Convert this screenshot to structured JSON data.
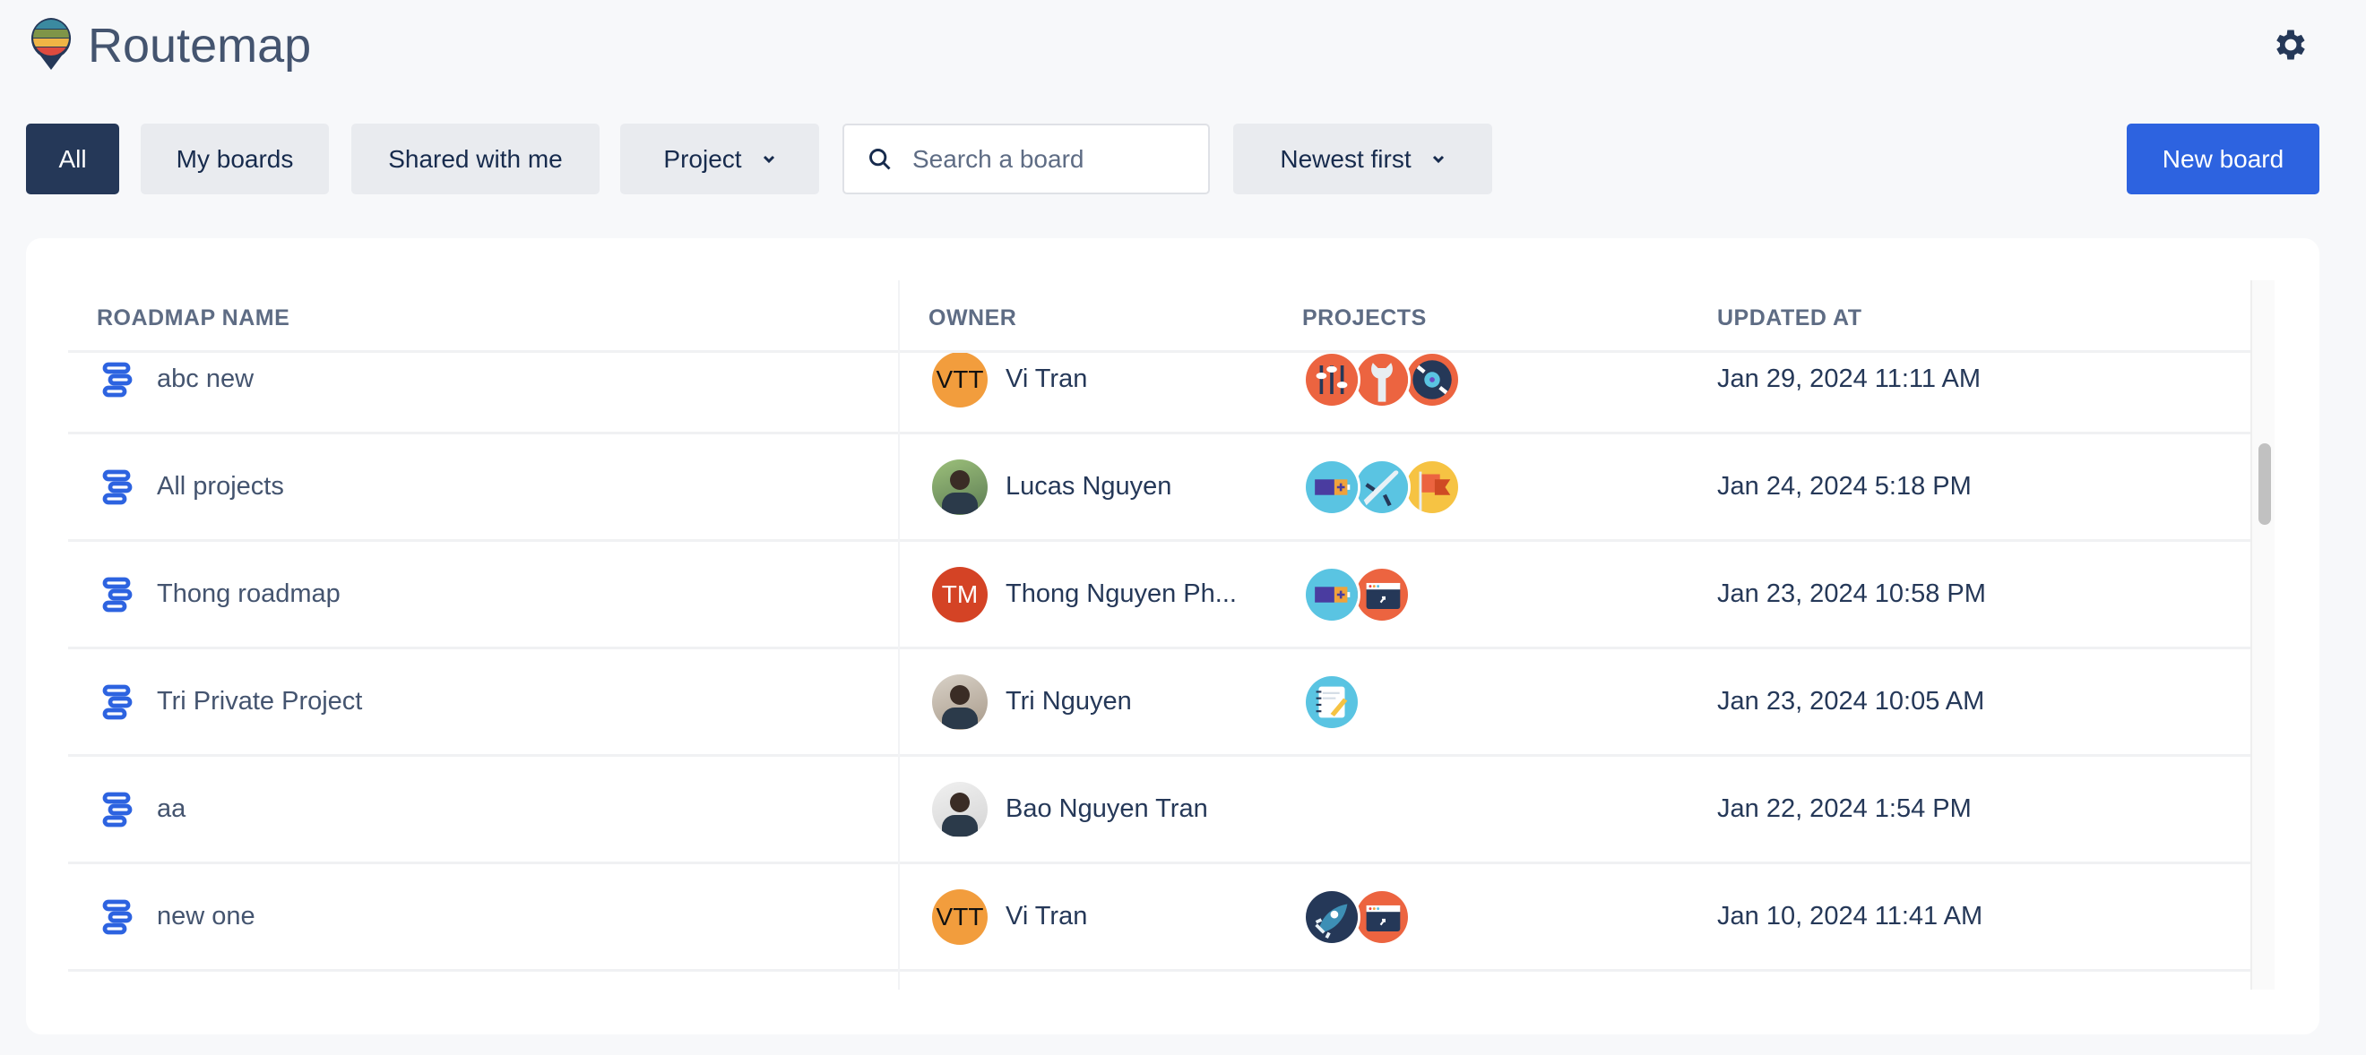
{
  "app": {
    "title": "Routemap",
    "logo": "routemap-pin-logo",
    "settings_icon": "gear-icon"
  },
  "toolbar": {
    "filters": [
      {
        "label": "All",
        "active": true
      },
      {
        "label": "My boards"
      },
      {
        "label": "Shared with me"
      }
    ],
    "project_dropdown": "Project",
    "search_placeholder": "Search a board",
    "sort": "Newest first",
    "new_board": "New board"
  },
  "colors": {
    "accent": "#2d63e0",
    "active_filter": "#253858"
  },
  "table": {
    "columns": [
      "ROADMAP NAME",
      "OWNER",
      "PROJECTS",
      "UPDATED AT"
    ],
    "rows": [
      {
        "name": "abc new",
        "owner": "Vi Tran",
        "initials": "VTT",
        "avatar_color": "#f29d3d",
        "projects": [
          "sliders",
          "wrench",
          "vinyl"
        ],
        "updated": "Jan 29, 2024 11:11 AM"
      },
      {
        "name": "All projects",
        "owner": "Lucas Nguyen",
        "avatar": "photo",
        "projects": [
          "battery",
          "plane",
          "flag"
        ],
        "updated": "Jan 24, 2024 5:18 PM"
      },
      {
        "name": "Thong roadmap",
        "owner": "Thong Nguyen Ph...",
        "initials": "TM",
        "avatar_color": "#d44325",
        "projects": [
          "battery",
          "browser"
        ],
        "updated": "Jan 23, 2024 10:58 PM"
      },
      {
        "name": "Tri Private Project",
        "owner": "Tri Nguyen",
        "avatar": "photo",
        "projects": [
          "notebook"
        ],
        "updated": "Jan 23, 2024 10:05 AM"
      },
      {
        "name": "aa",
        "owner": "Bao Nguyen Tran",
        "avatar": "photo",
        "projects": [],
        "updated": "Jan 22, 2024 1:54 PM"
      },
      {
        "name": "new one",
        "owner": "Vi Tran",
        "initials": "VTT",
        "avatar_color": "#f29d3d",
        "projects": [
          "rocket",
          "browser"
        ],
        "updated": "Jan 10, 2024 11:41 AM"
      }
    ]
  }
}
